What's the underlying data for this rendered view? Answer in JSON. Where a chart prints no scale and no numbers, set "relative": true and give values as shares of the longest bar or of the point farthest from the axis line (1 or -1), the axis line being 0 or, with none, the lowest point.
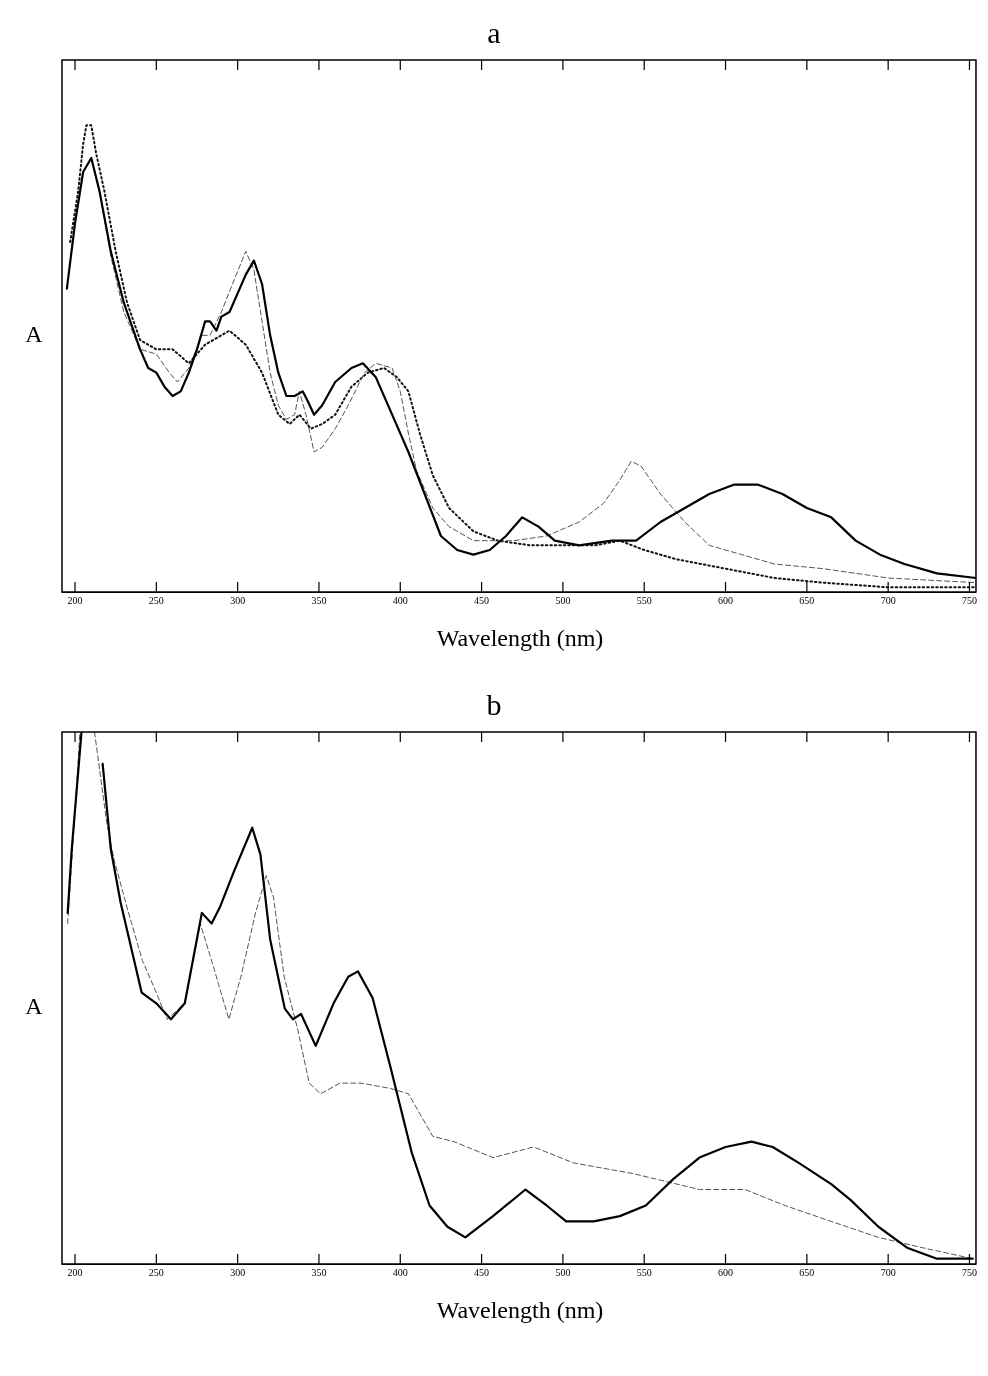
{
  "chart_data": [
    {
      "type": "line",
      "title": "a",
      "xlabel": "Wavelength (nm)",
      "ylabel": "A",
      "relative": true,
      "xlim": [
        192,
        754
      ],
      "xticks": [
        200,
        250,
        300,
        350,
        400,
        450,
        500,
        550,
        600,
        650,
        700,
        750
      ],
      "series": [
        {
          "color": "#000000",
          "line_style": "solid",
          "x": [
            195,
            200,
            205,
            210,
            215,
            222,
            230,
            240,
            245,
            250,
            255,
            260,
            265,
            270,
            275,
            280,
            283,
            287,
            290,
            295,
            300,
            305,
            310,
            315,
            320,
            325,
            330,
            335,
            340,
            343,
            347,
            352,
            360,
            370,
            377,
            385,
            395,
            405,
            415,
            425,
            435,
            445,
            455,
            465,
            475,
            485,
            495,
            510,
            530,
            545,
            560,
            575,
            590,
            605,
            620,
            635,
            650,
            665,
            680,
            695,
            710,
            730,
            754
          ],
          "values": [
            0.65,
            0.79,
            0.9,
            0.93,
            0.86,
            0.73,
            0.62,
            0.52,
            0.48,
            0.47,
            0.44,
            0.42,
            0.43,
            0.47,
            0.52,
            0.58,
            0.58,
            0.56,
            0.59,
            0.6,
            0.64,
            0.68,
            0.71,
            0.66,
            0.55,
            0.47,
            0.42,
            0.42,
            0.43,
            0.41,
            0.38,
            0.4,
            0.45,
            0.48,
            0.49,
            0.46,
            0.38,
            0.3,
            0.21,
            0.12,
            0.09,
            0.08,
            0.09,
            0.12,
            0.16,
            0.14,
            0.11,
            0.1,
            0.11,
            0.11,
            0.15,
            0.18,
            0.21,
            0.23,
            0.23,
            0.21,
            0.18,
            0.16,
            0.11,
            0.08,
            0.06,
            0.04,
            0.03
          ]
        },
        {
          "color": "#555555",
          "line_style": "dashed",
          "x": [
            205,
            210,
            215,
            222,
            230,
            240,
            250,
            258,
            263,
            270,
            278,
            283,
            290,
            298,
            305,
            310,
            315,
            320,
            325,
            330,
            335,
            338,
            342,
            347,
            352,
            360,
            368,
            378,
            385,
            395,
            400,
            405,
            410,
            420,
            430,
            445,
            470,
            490,
            510,
            525,
            535,
            542,
            548,
            560,
            575,
            590,
            610,
            630,
            660,
            700,
            754
          ],
          "values": [
            0.9,
            0.93,
            0.86,
            0.72,
            0.6,
            0.52,
            0.51,
            0.47,
            0.45,
            0.48,
            0.55,
            0.55,
            0.6,
            0.67,
            0.73,
            0.69,
            0.58,
            0.47,
            0.4,
            0.37,
            0.38,
            0.43,
            0.38,
            0.3,
            0.31,
            0.35,
            0.4,
            0.47,
            0.49,
            0.48,
            0.43,
            0.34,
            0.26,
            0.18,
            0.14,
            0.11,
            0.11,
            0.12,
            0.15,
            0.19,
            0.24,
            0.28,
            0.27,
            0.21,
            0.15,
            0.1,
            0.08,
            0.06,
            0.05,
            0.03,
            0.02
          ]
        },
        {
          "color": "#111111",
          "line_style": "dotted",
          "x": [
            197,
            202,
            205,
            207,
            210,
            213,
            218,
            225,
            232,
            240,
            250,
            260,
            270,
            280,
            290,
            295,
            305,
            315,
            325,
            332,
            338,
            345,
            352,
            360,
            370,
            380,
            390,
            398,
            405,
            412,
            420,
            430,
            445,
            460,
            480,
            500,
            520,
            535,
            550,
            570,
            600,
            630,
            660,
            700,
            754
          ],
          "values": [
            0.75,
            0.86,
            0.96,
            1.0,
            1.0,
            0.94,
            0.86,
            0.73,
            0.62,
            0.54,
            0.52,
            0.52,
            0.49,
            0.53,
            0.55,
            0.56,
            0.53,
            0.47,
            0.38,
            0.36,
            0.38,
            0.35,
            0.36,
            0.38,
            0.44,
            0.47,
            0.48,
            0.46,
            0.43,
            0.34,
            0.25,
            0.18,
            0.13,
            0.11,
            0.1,
            0.1,
            0.1,
            0.11,
            0.09,
            0.07,
            0.05,
            0.03,
            0.02,
            0.01,
            0.01
          ]
        }
      ]
    },
    {
      "type": "line",
      "title": "b",
      "xlabel": "Wavelength (nm)",
      "ylabel": "A",
      "relative": true,
      "xlim": [
        192,
        754
      ],
      "xticks": [
        200,
        250,
        300,
        350,
        400,
        450,
        500,
        550,
        600,
        650,
        700,
        750
      ],
      "series": [
        {
          "color": "#000000",
          "line_style": "solid",
          "x": [
            195.5,
            198,
            204,
            210,
            217,
            222,
            228,
            241,
            250,
            259,
            267.5,
            278,
            284,
            289,
            298,
            309,
            314,
            320,
            329,
            334,
            339,
            348,
            359,
            368,
            374,
            383,
            394,
            407,
            418,
            429,
            440,
            457,
            477,
            490,
            502,
            519,
            535,
            551,
            568,
            584,
            600,
            616,
            629,
            645,
            665,
            677,
            694,
            712,
            730,
            752
          ],
          "values": [
            0.66,
            0.78,
            1.0,
            null,
            0.94,
            0.78,
            0.68,
            0.51,
            0.49,
            0.46,
            0.49,
            0.66,
            0.64,
            0.67,
            0.74,
            0.82,
            0.77,
            0.61,
            0.48,
            0.46,
            0.47,
            0.41,
            0.49,
            0.54,
            0.55,
            0.5,
            0.37,
            0.21,
            0.11,
            0.07,
            0.05,
            0.09,
            0.14,
            0.11,
            0.08,
            0.08,
            0.09,
            0.11,
            0.16,
            0.2,
            0.22,
            0.23,
            0.22,
            0.19,
            0.15,
            0.12,
            0.07,
            0.03,
            0.01,
            0.01
          ]
        },
        {
          "color": "#555555",
          "line_style": "dashed",
          "x": [
            195.5,
            200,
            203,
            208,
            212,
            219.5,
            224,
            232,
            241.5,
            250,
            256.6,
            267.5,
            277,
            285,
            294.6,
            302,
            311,
            317.6,
            322,
            328.6,
            337,
            344,
            351,
            363,
            376,
            394,
            405,
            420,
            433,
            457,
            482,
            506.5,
            543,
            584,
            612,
            636.5,
            665,
            694,
            722,
            752
          ],
          "values": [
            0.64,
            0.85,
            1.0,
            null,
            1.0,
            0.83,
            0.76,
            0.67,
            0.57,
            0.51,
            0.46,
            0.49,
            0.64,
            0.56,
            0.46,
            0.54,
            0.66,
            0.73,
            0.69,
            0.54,
            0.44,
            0.34,
            0.32,
            0.34,
            0.34,
            0.33,
            0.32,
            0.24,
            0.23,
            0.2,
            0.22,
            0.19,
            0.17,
            0.14,
            0.14,
            0.11,
            0.08,
            0.05,
            0.03,
            0.01
          ]
        }
      ]
    }
  ]
}
